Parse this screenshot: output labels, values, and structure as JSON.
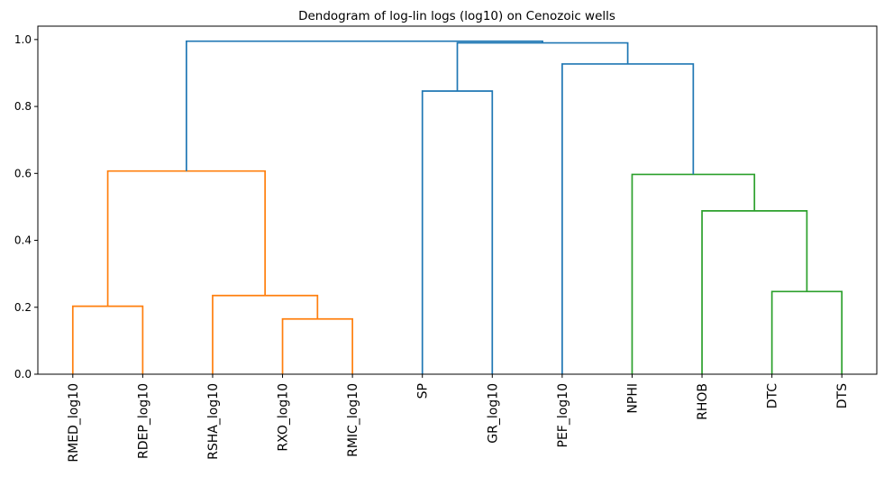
{
  "chart_data": {
    "type": "dendrogram",
    "title": "Dendogram of log-lin logs (log10) on Cenozoic wells",
    "ylim": [
      0,
      1.04
    ],
    "yticks": [
      "0.0",
      "0.2",
      "0.4",
      "0.6",
      "0.8",
      "1.0"
    ],
    "leaves": [
      "RMED_log10",
      "RDEP_log10",
      "RSHA_log10",
      "RXO_log10",
      "RMIC_log10",
      "SP",
      "GR_log10",
      "PEF_log10",
      "NPHI",
      "RHOB",
      "DTC",
      "DTS"
    ],
    "colors": {
      "orange": "#ff7f0e",
      "green": "#2ca02c",
      "blue": "#1f77b4"
    },
    "links": [
      {
        "left": "L0",
        "right": "L1",
        "height": 0.203,
        "color": "orange",
        "id": "n1"
      },
      {
        "left": "L3",
        "right": "L4",
        "height": 0.165,
        "color": "orange",
        "id": "n2"
      },
      {
        "left": "L2",
        "right": "n2",
        "height": 0.235,
        "color": "orange",
        "id": "n3"
      },
      {
        "left": "n1",
        "right": "n3",
        "height": 0.607,
        "color": "orange",
        "id": "n4"
      },
      {
        "left": "L5",
        "right": "L6",
        "height": 0.846,
        "color": "blue",
        "id": "n5"
      },
      {
        "left": "L10",
        "right": "L11",
        "height": 0.247,
        "color": "green",
        "id": "n6"
      },
      {
        "left": "L9",
        "right": "n6",
        "height": 0.488,
        "color": "green",
        "id": "n7"
      },
      {
        "left": "L8",
        "right": "n7",
        "height": 0.597,
        "color": "green",
        "id": "n8"
      },
      {
        "left": "L7",
        "right": "n8",
        "height": 0.927,
        "color": "blue",
        "id": "n9"
      },
      {
        "left": "n5",
        "right": "n9",
        "height": 0.99,
        "color": "blue",
        "id": "n10"
      },
      {
        "left": "n4",
        "right": "n10",
        "height": 0.995,
        "color": "blue",
        "id": "n11"
      }
    ]
  }
}
